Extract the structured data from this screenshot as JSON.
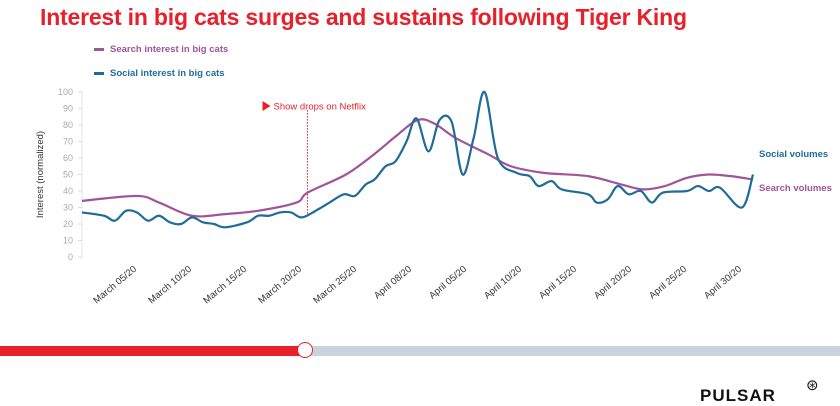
{
  "chart_data": {
    "type": "line",
    "title": "Interest in big cats surges and sustains following Tiger King",
    "xlabel": "",
    "ylabel": "Interest (normalized)",
    "ylim": [
      0,
      100
    ],
    "yticks": [
      0,
      10,
      20,
      30,
      40,
      50,
      60,
      70,
      80,
      90,
      100
    ],
    "x_tick_labels": [
      "March 05/20",
      "March 10/20",
      "March 15/20",
      "March 20/20",
      "March 25/20",
      "April 08/20",
      "April 05/20",
      "April 10/20",
      "April 15/20",
      "April 20/20",
      "April 25/20",
      "April 30/20"
    ],
    "grid": false,
    "legend_placement": "top-left",
    "series": [
      {
        "name": "Search interest in big cats",
        "end_label": "Search volumes",
        "color": "#a0549a",
        "points": [
          [
            0,
            34
          ],
          [
            5,
            37
          ],
          [
            7,
            33
          ],
          [
            10,
            25
          ],
          [
            13,
            26
          ],
          [
            16,
            28
          ],
          [
            19.5,
            33
          ],
          [
            20.5,
            39
          ],
          [
            24,
            50
          ],
          [
            26.5,
            62
          ],
          [
            28.5,
            73
          ],
          [
            30.5,
            83
          ],
          [
            32,
            81
          ],
          [
            34,
            72
          ],
          [
            37,
            62
          ],
          [
            39,
            55
          ],
          [
            42,
            51
          ],
          [
            46,
            49
          ],
          [
            49,
            44
          ],
          [
            51,
            41
          ],
          [
            53,
            43
          ],
          [
            55,
            48
          ],
          [
            57,
            50
          ],
          [
            59,
            49
          ],
          [
            61,
            47
          ]
        ]
      },
      {
        "name": "Social interest in big cats",
        "end_label": "Social volumes",
        "color": "#1f6b99",
        "points": [
          [
            0,
            27
          ],
          [
            2,
            25
          ],
          [
            3,
            22
          ],
          [
            4,
            28
          ],
          [
            5,
            27
          ],
          [
            6,
            22
          ],
          [
            7,
            25
          ],
          [
            8,
            21
          ],
          [
            9,
            20
          ],
          [
            10,
            24
          ],
          [
            11,
            21
          ],
          [
            12,
            20
          ],
          [
            13,
            18
          ],
          [
            15,
            21
          ],
          [
            16,
            25
          ],
          [
            17,
            25
          ],
          [
            18,
            27
          ],
          [
            19,
            27
          ],
          [
            20,
            24
          ],
          [
            21.5,
            29
          ],
          [
            22.5,
            33
          ],
          [
            23.8,
            38
          ],
          [
            24.8,
            37
          ],
          [
            25.8,
            44
          ],
          [
            26.6,
            47
          ],
          [
            27.6,
            55
          ],
          [
            28.5,
            58
          ],
          [
            29.5,
            70
          ],
          [
            30.4,
            84
          ],
          [
            31.5,
            64
          ],
          [
            32.5,
            83
          ],
          [
            33.6,
            82
          ],
          [
            34.6,
            50
          ],
          [
            35.6,
            72
          ],
          [
            36.6,
            100
          ],
          [
            37.8,
            60
          ],
          [
            39.5,
            51
          ],
          [
            40.7,
            49
          ],
          [
            41.5,
            43
          ],
          [
            42.7,
            46
          ],
          [
            43.6,
            41
          ],
          [
            46,
            38
          ],
          [
            46.8,
            33
          ],
          [
            47.8,
            35
          ],
          [
            48.7,
            43
          ],
          [
            49.7,
            38
          ],
          [
            50.8,
            40
          ],
          [
            51.8,
            33
          ],
          [
            52.8,
            39
          ],
          [
            55,
            40
          ],
          [
            56,
            43
          ],
          [
            57,
            40
          ],
          [
            58,
            42
          ],
          [
            60,
            30
          ],
          [
            61,
            50
          ]
        ]
      }
    ],
    "annotations": [
      {
        "text": "Show drops on Netflix",
        "x": 20.5,
        "color": "#e8202a"
      }
    ]
  },
  "slider": {
    "progress_percent": 36.3
  },
  "logo": "PULSAR"
}
